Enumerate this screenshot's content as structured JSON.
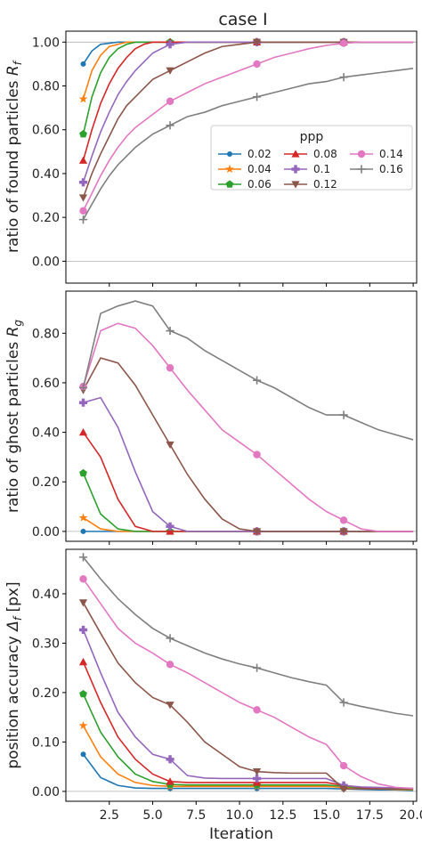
{
  "figure": {
    "title": "case I",
    "legend_title": "ppp"
  },
  "colors": {
    "0.02": "#1f77b4",
    "0.04": "#ff7f0e",
    "0.06": "#2ca02c",
    "0.08": "#d62728",
    "0.1": "#9467bd",
    "0.12": "#8c564b",
    "0.14": "#e377c2",
    "0.16": "#7f7f7f"
  },
  "chart_data": [
    {
      "type": "line",
      "panel": "top",
      "ylabel": "ratio of found particles R_f",
      "xlabel": "",
      "ylim": [
        -0.1,
        1.05
      ],
      "xlim": [
        0,
        20.2
      ],
      "yticks": [
        "0.00",
        "0.20",
        "0.40",
        "0.60",
        "0.80",
        "1.00"
      ],
      "grid": "horizontal lines at 0 and 1",
      "legend": "right-middle",
      "x": [
        1,
        1.5,
        2,
        2.5,
        3,
        3.5,
        4,
        4.5,
        5,
        5.5,
        6,
        6.5,
        7,
        8,
        9,
        10,
        11,
        12,
        13,
        14,
        15,
        16,
        17,
        18,
        19,
        20
      ],
      "series": [
        {
          "name": "0.02",
          "marker": "o",
          "values": [
            0.9,
            0.96,
            0.99,
            0.995,
            1.0,
            1.0,
            1.0,
            1.0,
            1.0,
            1.0,
            1.0,
            1.0,
            1.0,
            1.0,
            1.0,
            1.0,
            1.0,
            1.0,
            1.0,
            1.0,
            1.0,
            1.0,
            1.0,
            1.0,
            1.0,
            1.0
          ]
        },
        {
          "name": "0.04",
          "marker": "*",
          "values": [
            0.74,
            0.87,
            0.94,
            0.98,
            0.99,
            1.0,
            1.0,
            1.0,
            1.0,
            1.0,
            1.0,
            1.0,
            1.0,
            1.0,
            1.0,
            1.0,
            1.0,
            1.0,
            1.0,
            1.0,
            1.0,
            1.0,
            1.0,
            1.0,
            1.0,
            1.0
          ]
        },
        {
          "name": "0.06",
          "marker": "p",
          "values": [
            0.58,
            0.75,
            0.86,
            0.93,
            0.97,
            0.99,
            1.0,
            1.0,
            1.0,
            1.0,
            1.0,
            1.0,
            1.0,
            1.0,
            1.0,
            1.0,
            1.0,
            1.0,
            1.0,
            1.0,
            1.0,
            1.0,
            1.0,
            1.0,
            1.0,
            1.0
          ]
        },
        {
          "name": "0.08",
          "marker": "^",
          "values": [
            0.46,
            0.6,
            0.72,
            0.81,
            0.88,
            0.93,
            0.97,
            0.99,
            1.0,
            1.0,
            1.0,
            1.0,
            1.0,
            1.0,
            1.0,
            1.0,
            1.0,
            1.0,
            1.0,
            1.0,
            1.0,
            1.0,
            1.0,
            1.0,
            1.0,
            1.0
          ]
        },
        {
          "name": "0.1",
          "marker": "P",
          "values": [
            0.36,
            0.48,
            0.59,
            0.68,
            0.76,
            0.82,
            0.87,
            0.91,
            0.95,
            0.97,
            0.99,
            0.995,
            1.0,
            1.0,
            1.0,
            1.0,
            1.0,
            1.0,
            1.0,
            1.0,
            1.0,
            1.0,
            1.0,
            1.0,
            1.0,
            1.0
          ]
        },
        {
          "name": "0.12",
          "marker": "v",
          "values": [
            0.29,
            0.4,
            0.49,
            0.57,
            0.65,
            0.71,
            0.75,
            0.79,
            0.83,
            0.85,
            0.87,
            0.89,
            0.91,
            0.95,
            0.98,
            0.99,
            1.0,
            1.0,
            1.0,
            1.0,
            1.0,
            1.0,
            1.0,
            1.0,
            1.0,
            1.0
          ]
        },
        {
          "name": "0.14",
          "marker": "o",
          "values": [
            0.23,
            0.31,
            0.39,
            0.46,
            0.52,
            0.57,
            0.61,
            0.64,
            0.67,
            0.7,
            0.73,
            0.75,
            0.77,
            0.81,
            0.84,
            0.87,
            0.9,
            0.93,
            0.95,
            0.97,
            0.985,
            0.995,
            1.0,
            1.0,
            1.0,
            1.0
          ]
        },
        {
          "name": "0.16",
          "marker": "+",
          "values": [
            0.19,
            0.26,
            0.33,
            0.39,
            0.44,
            0.48,
            0.52,
            0.55,
            0.58,
            0.6,
            0.62,
            0.64,
            0.66,
            0.68,
            0.71,
            0.73,
            0.75,
            0.77,
            0.79,
            0.81,
            0.82,
            0.84,
            0.85,
            0.86,
            0.87,
            0.88
          ]
        }
      ]
    },
    {
      "type": "line",
      "panel": "middle",
      "ylabel": "ratio of ghost particles R_g",
      "xlabel": "",
      "ylim": [
        -0.04,
        0.97
      ],
      "xlim": [
        0,
        20.2
      ],
      "yticks": [
        "0.00",
        "0.20",
        "0.40",
        "0.60",
        "0.80"
      ],
      "x": [
        1,
        2,
        3,
        4,
        5,
        6,
        7,
        8,
        9,
        10,
        11,
        12,
        13,
        14,
        15,
        16,
        17,
        18,
        19,
        20
      ],
      "series": [
        {
          "name": "0.02",
          "marker": "o",
          "values": [
            0.0,
            0.0,
            0.0,
            0.0,
            0.0,
            0.0,
            0.0,
            0.0,
            0.0,
            0.0,
            0.0,
            0.0,
            0.0,
            0.0,
            0.0,
            0.0,
            0.0,
            0.0,
            0.0,
            0.0
          ]
        },
        {
          "name": "0.04",
          "marker": "*",
          "values": [
            0.055,
            0.01,
            0.0,
            0.0,
            0.0,
            0.0,
            0.0,
            0.0,
            0.0,
            0.0,
            0.0,
            0.0,
            0.0,
            0.0,
            0.0,
            0.0,
            0.0,
            0.0,
            0.0,
            0.0
          ]
        },
        {
          "name": "0.06",
          "marker": "p",
          "values": [
            0.235,
            0.07,
            0.01,
            0.0,
            0.0,
            0.0,
            0.0,
            0.0,
            0.0,
            0.0,
            0.0,
            0.0,
            0.0,
            0.0,
            0.0,
            0.0,
            0.0,
            0.0,
            0.0,
            0.0
          ]
        },
        {
          "name": "0.08",
          "marker": "^",
          "values": [
            0.4,
            0.3,
            0.13,
            0.02,
            0.0,
            0.0,
            0.0,
            0.0,
            0.0,
            0.0,
            0.0,
            0.0,
            0.0,
            0.0,
            0.0,
            0.0,
            0.0,
            0.0,
            0.0,
            0.0
          ]
        },
        {
          "name": "0.1",
          "marker": "P",
          "values": [
            0.52,
            0.54,
            0.42,
            0.24,
            0.08,
            0.02,
            0.0,
            0.0,
            0.0,
            0.0,
            0.0,
            0.0,
            0.0,
            0.0,
            0.0,
            0.0,
            0.0,
            0.0,
            0.0,
            0.0
          ]
        },
        {
          "name": "0.12",
          "marker": "v",
          "values": [
            0.57,
            0.7,
            0.68,
            0.59,
            0.47,
            0.35,
            0.23,
            0.13,
            0.05,
            0.01,
            0.0,
            0.0,
            0.0,
            0.0,
            0.0,
            0.0,
            0.0,
            0.0,
            0.0,
            0.0
          ]
        },
        {
          "name": "0.14",
          "marker": "o",
          "values": [
            0.585,
            0.81,
            0.84,
            0.82,
            0.75,
            0.66,
            0.57,
            0.49,
            0.41,
            0.36,
            0.31,
            0.25,
            0.19,
            0.13,
            0.08,
            0.045,
            0.01,
            0.0,
            0.0,
            0.0
          ]
        },
        {
          "name": "0.16",
          "marker": "+",
          "values": [
            0.58,
            0.88,
            0.91,
            0.93,
            0.91,
            0.81,
            0.78,
            0.73,
            0.69,
            0.65,
            0.61,
            0.58,
            0.54,
            0.5,
            0.47,
            0.47,
            0.44,
            0.41,
            0.39,
            0.37
          ]
        }
      ]
    },
    {
      "type": "line",
      "panel": "bottom",
      "ylabel": "position accuracy Δ_f [px]",
      "xlabel": "Iteration",
      "ylim": [
        -0.02,
        0.49
      ],
      "xlim": [
        0,
        20.2
      ],
      "yticks": [
        "0.00",
        "0.10",
        "0.20",
        "0.30",
        "0.40"
      ],
      "xticks": [
        "2.5",
        "5.0",
        "7.5",
        "10.0",
        "12.5",
        "15.0",
        "17.5",
        "20.0"
      ],
      "x": [
        1,
        2,
        3,
        4,
        5,
        6,
        7,
        8,
        9,
        10,
        11,
        12,
        13,
        14,
        15,
        16,
        17,
        18,
        19,
        20
      ],
      "series": [
        {
          "name": "0.02",
          "marker": "o",
          "values": [
            0.075,
            0.028,
            0.012,
            0.007,
            0.006,
            0.006,
            0.006,
            0.006,
            0.006,
            0.006,
            0.006,
            0.006,
            0.006,
            0.006,
            0.006,
            0.005,
            0.004,
            0.003,
            0.003,
            0.002
          ]
        },
        {
          "name": "0.04",
          "marker": "*",
          "values": [
            0.133,
            0.07,
            0.035,
            0.018,
            0.012,
            0.01,
            0.01,
            0.01,
            0.01,
            0.01,
            0.01,
            0.01,
            0.01,
            0.01,
            0.01,
            0.008,
            0.006,
            0.005,
            0.004,
            0.003
          ]
        },
        {
          "name": "0.06",
          "marker": "p",
          "values": [
            0.197,
            0.12,
            0.07,
            0.035,
            0.02,
            0.014,
            0.013,
            0.013,
            0.013,
            0.013,
            0.013,
            0.013,
            0.013,
            0.013,
            0.013,
            0.01,
            0.007,
            0.006,
            0.005,
            0.004
          ]
        },
        {
          "name": "0.08",
          "marker": "^",
          "values": [
            0.262,
            0.18,
            0.11,
            0.065,
            0.035,
            0.02,
            0.018,
            0.018,
            0.018,
            0.018,
            0.018,
            0.018,
            0.018,
            0.018,
            0.018,
            0.012,
            0.008,
            0.007,
            0.006,
            0.005
          ]
        },
        {
          "name": "0.1",
          "marker": "P",
          "values": [
            0.327,
            0.24,
            0.16,
            0.11,
            0.075,
            0.065,
            0.032,
            0.027,
            0.026,
            0.026,
            0.026,
            0.026,
            0.026,
            0.026,
            0.026,
            0.012,
            0.009,
            0.008,
            0.007,
            0.006
          ]
        },
        {
          "name": "0.12",
          "marker": "v",
          "values": [
            0.382,
            0.32,
            0.26,
            0.22,
            0.19,
            0.175,
            0.14,
            0.1,
            0.075,
            0.05,
            0.04,
            0.038,
            0.037,
            0.037,
            0.037,
            0.005,
            0.005,
            0.005,
            0.005,
            0.005
          ]
        },
        {
          "name": "0.14",
          "marker": "o",
          "values": [
            0.43,
            0.38,
            0.33,
            0.3,
            0.28,
            0.257,
            0.24,
            0.22,
            0.2,
            0.18,
            0.165,
            0.15,
            0.13,
            0.11,
            0.095,
            0.052,
            0.03,
            0.015,
            0.008,
            0.006
          ]
        },
        {
          "name": "0.16",
          "marker": "+",
          "values": [
            0.474,
            0.43,
            0.39,
            0.358,
            0.33,
            0.31,
            0.295,
            0.28,
            0.268,
            0.258,
            0.25,
            0.24,
            0.23,
            0.222,
            0.215,
            0.18,
            0.172,
            0.165,
            0.158,
            0.153
          ]
        }
      ]
    }
  ],
  "markers_at": [
    1,
    6,
    11,
    16
  ]
}
